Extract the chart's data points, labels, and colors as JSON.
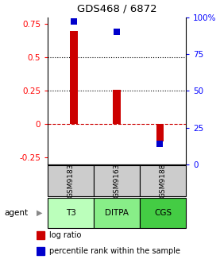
{
  "title": "GDS468 / 6872",
  "samples": [
    "GSM9183",
    "GSM9163",
    "GSM9188"
  ],
  "agents": [
    "T3",
    "DITPA",
    "CGS"
  ],
  "log_ratios": [
    0.7,
    0.26,
    -0.13
  ],
  "percentile_ranks": [
    0.97,
    0.9,
    0.14
  ],
  "bar_color": "#cc0000",
  "dot_color": "#0000cc",
  "ylim_left": [
    -0.3,
    0.8
  ],
  "ylim_right": [
    0.0,
    1.0
  ],
  "yticks_left": [
    -0.25,
    0.0,
    0.25,
    0.5,
    0.75
  ],
  "yticks_right": [
    0.0,
    0.25,
    0.5,
    0.75,
    1.0
  ],
  "ytick_labels_left": [
    "-0.25",
    "0",
    "0.25",
    "0.5",
    "0.75"
  ],
  "ytick_labels_right": [
    "0",
    "25",
    "50",
    "75",
    "100%"
  ],
  "hlines": [
    0.0,
    0.25,
    0.5
  ],
  "hline_styles": [
    "--",
    ":",
    ":"
  ],
  "hline_colors": [
    "#cc0000",
    "#000000",
    "#000000"
  ],
  "agent_colors": [
    "#bbffbb",
    "#88ee88",
    "#44cc44"
  ],
  "sample_bg": "#cccccc",
  "bar_width": 0.18,
  "dot_size": 28,
  "agent_label": "agent",
  "legend_log_ratio": "log ratio",
  "legend_percentile": "percentile rank within the sample",
  "title_fontsize": 9.5
}
